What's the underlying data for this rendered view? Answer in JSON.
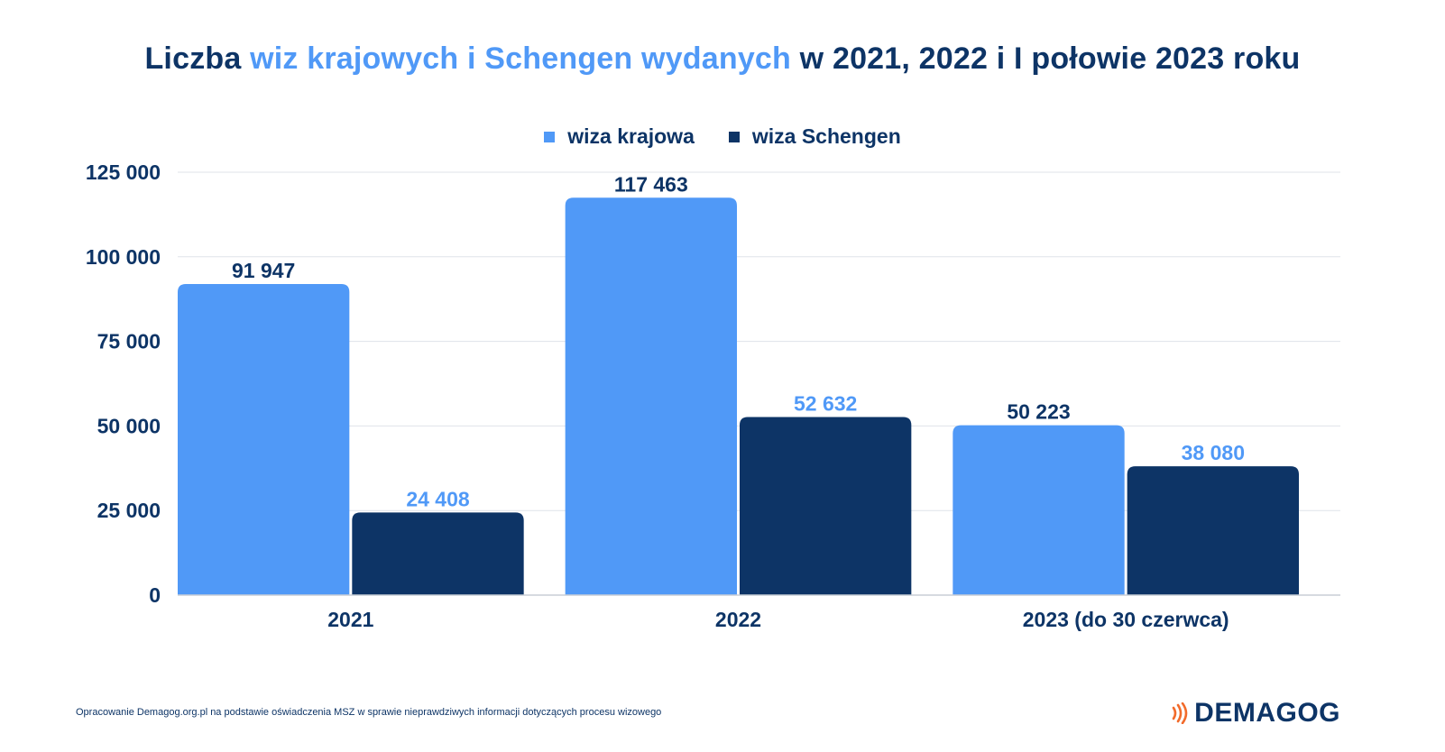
{
  "title": {
    "part1": "Liczba ",
    "highlight": "wiz krajowych i Schengen wydanych",
    "part2": " w 2021, 2022 i I połowie 2023 roku"
  },
  "footer": {
    "source": "Opracowanie Demagog.org.pl na podstawie oświadczenia MSZ w sprawie nieprawdziwych informacji dotyczących procesu wizowego",
    "logo_text": "DEMAGOG",
    "logo_icon": "signal-waves-icon"
  },
  "colors": {
    "krajowa": "#5099f7",
    "schengen": "#0d3466",
    "title_highlight": "#5099f7",
    "text": "#0d3466",
    "logo_accent": "#f26b2b"
  },
  "chart_data": {
    "type": "bar",
    "title": "Liczba wiz krajowych i Schengen wydanych w 2021, 2022 i I połowie 2023 roku",
    "categories": [
      "2021",
      "2022",
      "2023 (do 30 czerwca)"
    ],
    "series": [
      {
        "name": "wiza krajowa",
        "values": [
          91947,
          117463,
          50223
        ],
        "labels": [
          "91 947",
          "117 463",
          "50 223"
        ]
      },
      {
        "name": "wiza Schengen",
        "values": [
          24408,
          52632,
          38080
        ],
        "labels": [
          "24 408",
          "52 632",
          "38 080"
        ]
      }
    ],
    "ylim": [
      0,
      125000
    ],
    "yticks": [
      0,
      25000,
      50000,
      75000,
      100000,
      125000
    ],
    "ytick_labels": [
      "0",
      "25 000",
      "50 000",
      "75 000",
      "100 000",
      "125 000"
    ],
    "grid": true,
    "legend_position": "top-center"
  }
}
